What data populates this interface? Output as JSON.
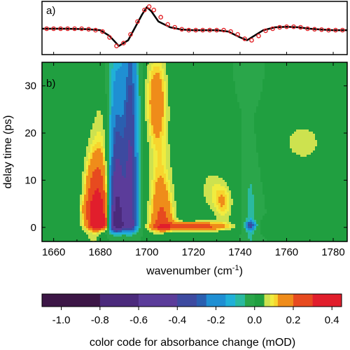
{
  "chart_data": [
    {
      "panel_label": "a)",
      "type": "line",
      "series": [
        {
          "style": "solid-black-line",
          "x": [
            1655,
            1665,
            1675,
            1680,
            1684,
            1688,
            1692,
            1695,
            1698,
            1700,
            1702,
            1705,
            1710,
            1715,
            1720,
            1725,
            1730,
            1735,
            1740,
            1743,
            1746,
            1750,
            1755,
            1760,
            1765,
            1770,
            1775,
            1780,
            1786
          ],
          "y": [
            0.05,
            0.05,
            0.03,
            0.0,
            -0.2,
            -0.55,
            -0.35,
            0.1,
            0.55,
            0.8,
            0.65,
            0.3,
            0.1,
            0.02,
            0.0,
            0.0,
            0.0,
            -0.05,
            -0.25,
            -0.35,
            -0.2,
            0.0,
            0.1,
            0.12,
            0.1,
            0.05,
            0.02,
            0.0,
            0.0
          ]
        },
        {
          "style": "red-open-circles",
          "x": [
            1657,
            1660,
            1663,
            1666,
            1669,
            1672,
            1675,
            1678,
            1681,
            1684,
            1687,
            1690,
            1693,
            1696,
            1699,
            1701,
            1703,
            1706,
            1709,
            1712,
            1715,
            1718,
            1721,
            1724,
            1727,
            1730,
            1733,
            1736,
            1739,
            1742,
            1745,
            1748,
            1751,
            1754,
            1757,
            1760,
            1763,
            1766,
            1769,
            1772,
            1775,
            1778,
            1781,
            1784
          ],
          "y": [
            0.05,
            0.05,
            0.05,
            0.05,
            0.05,
            0.05,
            0.03,
            0.0,
            -0.05,
            -0.25,
            -0.55,
            -0.45,
            -0.15,
            0.3,
            0.7,
            0.82,
            0.7,
            0.45,
            0.2,
            0.1,
            0.03,
            0.0,
            0.0,
            0.0,
            0.0,
            0.0,
            0.0,
            -0.05,
            -0.15,
            -0.3,
            -0.35,
            -0.2,
            -0.02,
            0.05,
            0.1,
            0.12,
            0.12,
            0.1,
            0.05,
            0.03,
            0.02,
            0.0,
            0.0,
            0.0
          ]
        }
      ],
      "xlim": [
        1655,
        1786
      ]
    },
    {
      "panel_label": "b)",
      "type": "heatmap",
      "xlabel": "wavenumber (cm-1)",
      "ylabel": "delay time (ps)",
      "xlim": [
        1655,
        1786
      ],
      "ylim": [
        -3,
        35
      ],
      "x_ticks": [
        "1660",
        "1680",
        "1700",
        "1720",
        "1740",
        "1760",
        "1780"
      ],
      "y_ticks": [
        "0",
        "10",
        "20",
        "30"
      ],
      "components": [
        {
          "x0": 1687,
          "xw": 3.5,
          "t0": 0.6,
          "tw": 1.4,
          "tscale": 18,
          "amp": -0.95
        },
        {
          "x0": 1693,
          "xw": 3.0,
          "t0": 0.6,
          "tw": 1.5,
          "tscale": 50,
          "amp": -0.45
        },
        {
          "x0": 1693,
          "xw": 3.5,
          "t0": 20,
          "tw": 16,
          "tscale": 0,
          "amp": -0.07
        },
        {
          "x0": 1681,
          "xw": 6,
          "t0": 0.5,
          "tw": 1.0,
          "tscale": 12,
          "amp": 0.42
        },
        {
          "x0": 1677,
          "xw": 4,
          "t0": 6,
          "tw": 9,
          "tscale": 0,
          "amp": 0.14
        },
        {
          "x0": 1674,
          "xw": 3,
          "t0": 4,
          "tw": 2,
          "tscale": 0,
          "amp": 0.06
        },
        {
          "x0": 1704,
          "xw": 4.5,
          "t0": 27,
          "tw": 10,
          "tscale": 0,
          "amp": 0.16
        },
        {
          "x0": 1704,
          "xw": 4.0,
          "t0": 5,
          "tw": 10,
          "tscale": 0,
          "amp": 0.05
        },
        {
          "x0": 1707,
          "xw": 5,
          "t0": 0.2,
          "tw": 1.0,
          "tscale": 10,
          "amp": 0.25
        },
        {
          "x0": 1721,
          "xw": 13,
          "t0": 0.2,
          "tw": 0.9,
          "tscale": 0,
          "amp": 0.26
        },
        {
          "x0": 1733,
          "xw": 4,
          "t0": 5,
          "tw": 4,
          "tscale": 0,
          "amp": 0.1
        },
        {
          "x0": 1728,
          "xw": 6,
          "t0": 8,
          "tw": 5,
          "tscale": 0,
          "amp": 0.07
        },
        {
          "x0": 1744.5,
          "xw": 2.2,
          "t0": 0.4,
          "tw": 0.9,
          "tscale": 0,
          "amp": -0.3
        },
        {
          "x0": 1744.5,
          "xw": 2.0,
          "t0": 3,
          "tw": 9,
          "tscale": 0,
          "amp": -0.08
        },
        {
          "x0": 1744.5,
          "xw": 1.8,
          "t0": 31,
          "tw": 3,
          "tscale": 0,
          "amp": -0.05
        },
        {
          "x0": 1767,
          "xw": 10,
          "t0": 18,
          "tw": 5,
          "tscale": 0,
          "amp": 0.07
        },
        {
          "x0": 1756,
          "xw": 5,
          "t0": 0.2,
          "tw": 0.9,
          "tscale": 0,
          "amp": 0.05
        }
      ]
    }
  ],
  "colorbar": {
    "label": "color code for absorbance change (mOD)",
    "min": -1.1,
    "max": 0.45,
    "tick_values": [
      -1.0,
      -0.8,
      -0.6,
      -0.4,
      -0.2,
      0.0,
      0.2,
      0.4
    ],
    "tick_labels": [
      "-1.0",
      "-0.8",
      "-0.6",
      "-0.4",
      "-0.2",
      "0.0",
      "0.2",
      "0.4"
    ],
    "levels": [
      {
        "from": -1.1,
        "to": -0.8,
        "color": "#3c1646"
      },
      {
        "from": -0.8,
        "to": -0.6,
        "color": "#4b2a7c"
      },
      {
        "from": -0.6,
        "to": -0.4,
        "color": "#5b3c9a"
      },
      {
        "from": -0.4,
        "to": -0.3,
        "color": "#3d4aa0"
      },
      {
        "from": -0.3,
        "to": -0.25,
        "color": "#2a5fb0"
      },
      {
        "from": -0.25,
        "to": -0.15,
        "color": "#1f8fd3"
      },
      {
        "from": -0.15,
        "to": -0.1,
        "color": "#20b0d8"
      },
      {
        "from": -0.1,
        "to": -0.05,
        "color": "#2ab9a0"
      },
      {
        "from": -0.05,
        "to": 0.0,
        "color": "#2aa64a"
      },
      {
        "from": 0.0,
        "to": 0.05,
        "color": "#209f40"
      },
      {
        "from": 0.05,
        "to": 0.08,
        "color": "#cde24f"
      },
      {
        "from": 0.08,
        "to": 0.1,
        "color": "#f0ec3f"
      },
      {
        "from": 0.1,
        "to": 0.12,
        "color": "#f7d52e"
      },
      {
        "from": 0.12,
        "to": 0.2,
        "color": "#ef8c1a"
      },
      {
        "from": 0.2,
        "to": 0.3,
        "color": "#e74a1f"
      },
      {
        "from": 0.3,
        "to": 0.45,
        "color": "#e11e2c"
      }
    ]
  }
}
